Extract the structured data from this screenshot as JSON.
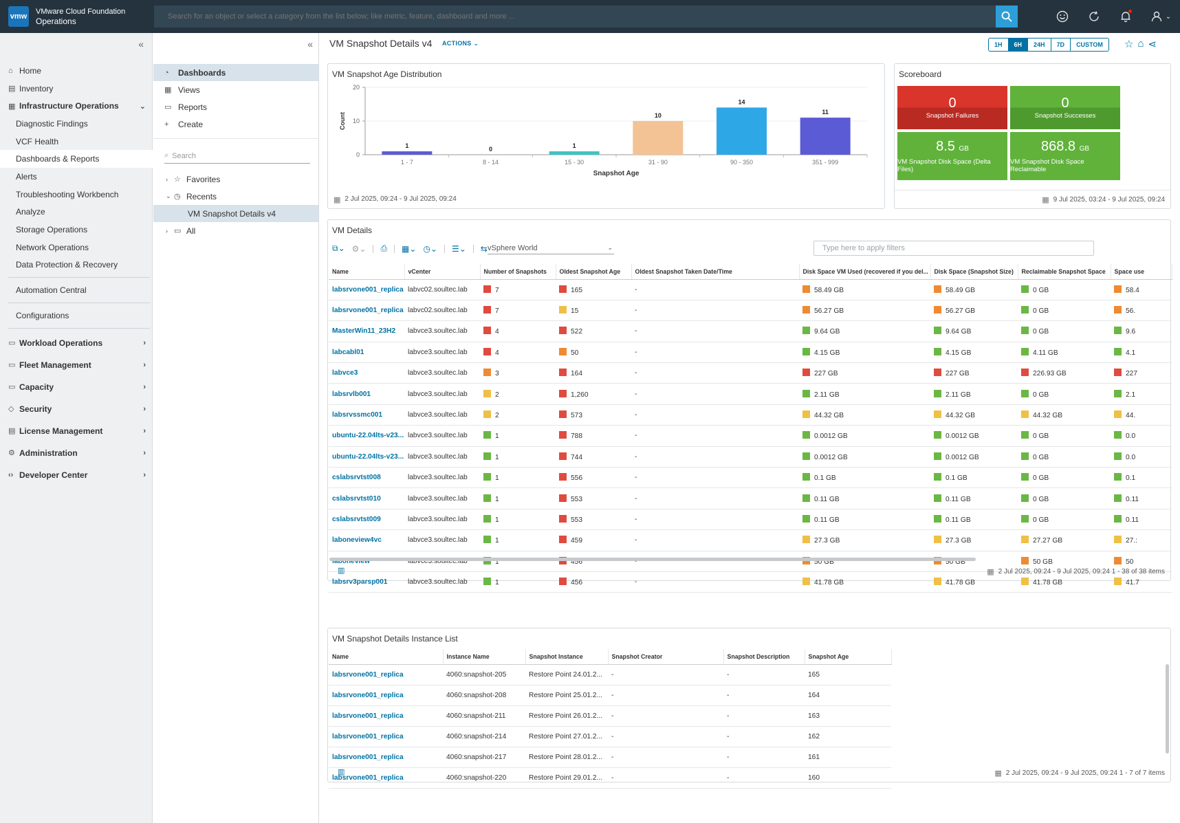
{
  "app": {
    "logo": "vmw",
    "title_line1": "VMware Cloud Foundation",
    "title_line2": "Operations"
  },
  "search": {
    "placeholder": "Search for an object or select a category from the list below; like metric, feature, dashboard and more ..."
  },
  "topbar_icons": [
    "search-icon",
    "smiley-icon",
    "refresh-icon",
    "bell-icon",
    "user-icon"
  ],
  "leftnav": {
    "items": [
      {
        "label": "Home",
        "icon": "home-icon",
        "level": 0,
        "bold": false
      },
      {
        "label": "Inventory",
        "icon": "inventory-icon",
        "level": 0,
        "bold": false
      },
      {
        "label": "Infrastructure Operations",
        "icon": "infra-icon",
        "level": 0,
        "bold": true,
        "expanded": true
      },
      {
        "label": "Diagnostic Findings",
        "level": 1
      },
      {
        "label": "VCF Health",
        "level": 1
      },
      {
        "label": "Dashboards & Reports",
        "level": 1,
        "active": true
      },
      {
        "label": "Alerts",
        "level": 1
      },
      {
        "label": "Troubleshooting Workbench",
        "level": 1
      },
      {
        "label": "Analyze",
        "level": 1
      },
      {
        "label": "Storage Operations",
        "level": 1
      },
      {
        "label": "Network Operations",
        "level": 1
      },
      {
        "label": "Data Protection & Recovery",
        "level": 1
      }
    ],
    "items2": [
      {
        "label": "Automation Central",
        "level": 1
      }
    ],
    "items3": [
      {
        "label": "Configurations",
        "level": 1
      }
    ],
    "items4": [
      {
        "label": "Workload Operations",
        "icon": "workload-icon",
        "bold": true
      },
      {
        "label": "Fleet Management",
        "icon": "fleet-icon",
        "bold": true
      },
      {
        "label": "Capacity",
        "icon": "capacity-icon",
        "bold": true
      },
      {
        "label": "Security",
        "icon": "shield-icon",
        "bold": true
      },
      {
        "label": "License Management",
        "icon": "license-icon",
        "bold": true
      },
      {
        "label": "Administration",
        "icon": "admin-icon",
        "bold": true
      },
      {
        "label": "Developer Center",
        "icon": "code-icon",
        "bold": true
      }
    ]
  },
  "subnav": {
    "items": [
      {
        "label": "Dashboards",
        "icon": "dashboard-icon",
        "active": true
      },
      {
        "label": "Views",
        "icon": "views-icon"
      },
      {
        "label": "Reports",
        "icon": "reports-icon"
      },
      {
        "label": "Create",
        "icon": "plus-icon"
      }
    ],
    "search_placeholder": "Search",
    "tree": [
      {
        "label": "Favorites",
        "icon": "star-icon",
        "arrow": "›"
      },
      {
        "label": "Recents",
        "icon": "clock-icon",
        "arrow": "⌄"
      },
      {
        "label": "VM Snapshot Details v4",
        "leaf": true
      },
      {
        "label": "All",
        "icon": "folder-icon",
        "arrow": "›"
      }
    ]
  },
  "dashboard": {
    "title": "VM Snapshot Details v4",
    "actions_label": "ACTIONS",
    "time_ranges": [
      "1H",
      "6H",
      "24H",
      "7D",
      "CUSTOM"
    ],
    "selected_range": "6H"
  },
  "age_widget": {
    "title": "VM Snapshot Age Distribution",
    "footer": "2 Jul 2025, 09:24 - 9 Jul 2025, 09:24"
  },
  "chart_data": {
    "type": "bar",
    "xlabel": "Snapshot Age",
    "ylabel": "Count",
    "ylim": [
      0,
      20
    ],
    "yticks": [
      0,
      10,
      20
    ],
    "categories": [
      "1 - 7",
      "8 - 14",
      "15 - 30",
      "31 - 90",
      "90 - 350",
      "351 - 999"
    ],
    "values": [
      1,
      0,
      1,
      10,
      14,
      11
    ],
    "colors": [
      "#5b5bd6",
      "#5b5bd6",
      "#3fc3c4",
      "#f3c395",
      "#2ea7e6",
      "#5b5bd6"
    ]
  },
  "scoreboard": {
    "title": "Scoreboard",
    "tiles": [
      {
        "value": "0",
        "unit": "",
        "label": "Snapshot Failures",
        "color": "red"
      },
      {
        "value": "0",
        "unit": "",
        "label": "Snapshot Successes",
        "color": "green"
      },
      {
        "value": "8.5",
        "unit": "GB",
        "label": "VM Snapshot Disk Space (Delta Files)",
        "color": "green"
      },
      {
        "value": "868.8",
        "unit": "GB",
        "label": "VM Snapshot Disk Space Reclaimable",
        "color": "green"
      }
    ],
    "footer": "9 Jul 2025, 03:24 - 9 Jul 2025, 09:24"
  },
  "vm_details": {
    "title": "VM Details",
    "select_value": "vSphere World",
    "filter_placeholder": "Type here to apply filters",
    "columns": [
      "Name",
      "vCenter",
      "Number of Snapshots",
      "Oldest Snapshot Age",
      "Oldest Snapshot Taken Date/Time",
      "Disk Space VM Used (recovered if you del...",
      "Disk Space (Snapshot Size)",
      "Reclaimable Snapshot Space",
      "Space use"
    ],
    "rows": [
      [
        "labsrvone001_replica",
        "labvc02.soultec.lab",
        [
          "red",
          "7"
        ],
        [
          "red",
          "165"
        ],
        "-",
        [
          "orange",
          "58.49 GB"
        ],
        [
          "orange",
          "58.49 GB"
        ],
        [
          "green",
          "0 GB"
        ],
        [
          "orange",
          "58.4"
        ]
      ],
      [
        "labsrvone001_replica",
        "labvc02.soultec.lab",
        [
          "red",
          "7"
        ],
        [
          "yellow",
          "15"
        ],
        "-",
        [
          "orange",
          "56.27 GB"
        ],
        [
          "orange",
          "56.27 GB"
        ],
        [
          "green",
          "0 GB"
        ],
        [
          "orange",
          "56."
        ]
      ],
      [
        "MasterWin11_23H2",
        "labvce3.soultec.lab",
        [
          "red",
          "4"
        ],
        [
          "red",
          "522"
        ],
        "-",
        [
          "green",
          "9.64 GB"
        ],
        [
          "green",
          "9.64 GB"
        ],
        [
          "green",
          "0 GB"
        ],
        [
          "green",
          "9.6"
        ]
      ],
      [
        "labcabl01",
        "labvce3.soultec.lab",
        [
          "red",
          "4"
        ],
        [
          "orange",
          "50"
        ],
        "-",
        [
          "green",
          "4.15 GB"
        ],
        [
          "green",
          "4.15 GB"
        ],
        [
          "green",
          "4.11 GB"
        ],
        [
          "green",
          "4.1"
        ]
      ],
      [
        "labvce3",
        "labvce3.soultec.lab",
        [
          "orange",
          "3"
        ],
        [
          "red",
          "164"
        ],
        "-",
        [
          "red",
          "227 GB"
        ],
        [
          "red",
          "227 GB"
        ],
        [
          "red",
          "226.93 GB"
        ],
        [
          "red",
          "227"
        ]
      ],
      [
        "labsrvlb001",
        "labvce3.soultec.lab",
        [
          "yellow",
          "2"
        ],
        [
          "red",
          "1,260"
        ],
        "-",
        [
          "green",
          "2.11 GB"
        ],
        [
          "green",
          "2.11 GB"
        ],
        [
          "green",
          "0 GB"
        ],
        [
          "green",
          "2.1"
        ]
      ],
      [
        "labsrvssmc001",
        "labvce3.soultec.lab",
        [
          "yellow",
          "2"
        ],
        [
          "red",
          "573"
        ],
        "-",
        [
          "yellow",
          "44.32 GB"
        ],
        [
          "yellow",
          "44.32 GB"
        ],
        [
          "yellow",
          "44.32 GB"
        ],
        [
          "yellow",
          "44."
        ]
      ],
      [
        "ubuntu-22.04lts-v23...",
        "labvce3.soultec.lab",
        [
          "green",
          "1"
        ],
        [
          "red",
          "788"
        ],
        "-",
        [
          "green",
          "0.0012 GB"
        ],
        [
          "green",
          "0.0012 GB"
        ],
        [
          "green",
          "0 GB"
        ],
        [
          "green",
          "0.0"
        ]
      ],
      [
        "ubuntu-22.04lts-v23...",
        "labvce3.soultec.lab",
        [
          "green",
          "1"
        ],
        [
          "red",
          "744"
        ],
        "-",
        [
          "green",
          "0.0012 GB"
        ],
        [
          "green",
          "0.0012 GB"
        ],
        [
          "green",
          "0 GB"
        ],
        [
          "green",
          "0.0"
        ]
      ],
      [
        "cslabsrvtst008",
        "labvce3.soultec.lab",
        [
          "green",
          "1"
        ],
        [
          "red",
          "556"
        ],
        "-",
        [
          "green",
          "0.1 GB"
        ],
        [
          "green",
          "0.1 GB"
        ],
        [
          "green",
          "0 GB"
        ],
        [
          "green",
          "0.1"
        ]
      ],
      [
        "cslabsrvtst010",
        "labvce3.soultec.lab",
        [
          "green",
          "1"
        ],
        [
          "red",
          "553"
        ],
        "-",
        [
          "green",
          "0.11 GB"
        ],
        [
          "green",
          "0.11 GB"
        ],
        [
          "green",
          "0 GB"
        ],
        [
          "green",
          "0.11"
        ]
      ],
      [
        "cslabsrvtst009",
        "labvce3.soultec.lab",
        [
          "green",
          "1"
        ],
        [
          "red",
          "553"
        ],
        "-",
        [
          "green",
          "0.11 GB"
        ],
        [
          "green",
          "0.11 GB"
        ],
        [
          "green",
          "0 GB"
        ],
        [
          "green",
          "0.11"
        ]
      ],
      [
        "laboneview4vc",
        "labvce3.soultec.lab",
        [
          "green",
          "1"
        ],
        [
          "red",
          "459"
        ],
        "-",
        [
          "yellow",
          "27.3 GB"
        ],
        [
          "yellow",
          "27.3 GB"
        ],
        [
          "yellow",
          "27.27 GB"
        ],
        [
          "yellow",
          "27.:"
        ]
      ],
      [
        "laboneview",
        "labvce3.soultec.lab",
        [
          "green",
          "1"
        ],
        [
          "red",
          "456"
        ],
        "-",
        [
          "orange",
          "50 GB"
        ],
        [
          "orange",
          "50 GB"
        ],
        [
          "orange",
          "50 GB"
        ],
        [
          "orange",
          "50"
        ]
      ],
      [
        "labsrv3parsp001",
        "labvce3.soultec.lab",
        [
          "green",
          "1"
        ],
        [
          "red",
          "456"
        ],
        "-",
        [
          "yellow",
          "41.78 GB"
        ],
        [
          "yellow",
          "41.78 GB"
        ],
        [
          "yellow",
          "41.78 GB"
        ],
        [
          "yellow",
          "41.7"
        ]
      ]
    ],
    "footer": "2 Jul 2025, 09:24 - 9 Jul 2025, 09:24 1 - 38 of 38 items"
  },
  "instance_list": {
    "title": "VM Snapshot Details Instance List",
    "columns": [
      "Name",
      "Instance Name",
      "Snapshot Instance",
      "Snapshot Creator",
      "Snapshot Description",
      "Snapshot Age"
    ],
    "rows": [
      [
        "labsrvone001_replica",
        "4060:snapshot-205",
        "Restore Point 24.01.2...",
        "-",
        "-",
        "165"
      ],
      [
        "labsrvone001_replica",
        "4060:snapshot-208",
        "Restore Point 25.01.2...",
        "-",
        "-",
        "164"
      ],
      [
        "labsrvone001_replica",
        "4060:snapshot-211",
        "Restore Point 26.01.2...",
        "-",
        "-",
        "163"
      ],
      [
        "labsrvone001_replica",
        "4060:snapshot-214",
        "Restore Point 27.01.2...",
        "-",
        "-",
        "162"
      ],
      [
        "labsrvone001_replica",
        "4060:snapshot-217",
        "Restore Point 28.01.2...",
        "-",
        "-",
        "161"
      ],
      [
        "labsrvone001_replica",
        "4060:snapshot-220",
        "Restore Point 29.01.2...",
        "-",
        "-",
        "160"
      ]
    ],
    "footer": "2 Jul 2025, 09:24 - 9 Jul 2025, 09:24 1 - 7 of 7 items"
  }
}
